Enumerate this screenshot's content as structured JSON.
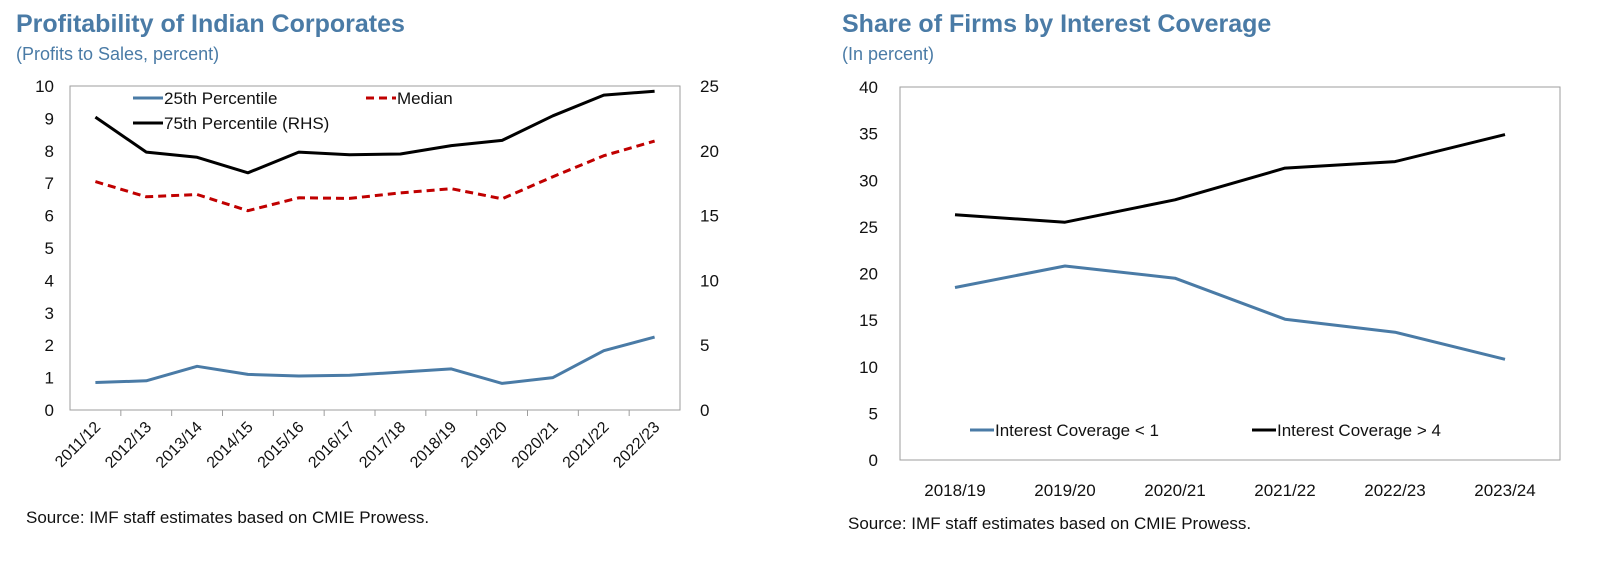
{
  "colors": {
    "accent": "#4a7ba6",
    "series_blue": "#4a7ba6",
    "series_red": "#c00000",
    "series_black": "#000000"
  },
  "left": {
    "title": "Profitability of Indian Corporates",
    "subtitle": "(Profits to Sales, percent)",
    "source": "Source: IMF staff estimates based on CMIE Prowess."
  },
  "right": {
    "title": "Share of Firms by Interest Coverage",
    "subtitle": "(In percent)",
    "source": "Source: IMF staff estimates based on CMIE Prowess."
  },
  "chart_data": [
    {
      "type": "line",
      "title": "Profitability of Indian Corporates",
      "subtitle": "(Profits to Sales, percent)",
      "categories": [
        "2011/12",
        "2012/13",
        "2013/14",
        "2014/15",
        "2015/16",
        "2016/17",
        "2017/18",
        "2018/19",
        "2019/20",
        "2020/21",
        "2021/22",
        "2022/23"
      ],
      "ylim": [
        0,
        10
      ],
      "yticks": [
        0,
        1,
        2,
        3,
        4,
        5,
        6,
        7,
        8,
        9,
        10
      ],
      "y2lim": [
        0,
        25
      ],
      "y2ticks": [
        0,
        5,
        10,
        15,
        20,
        25
      ],
      "grid": false,
      "legend_position": "top-left",
      "series": [
        {
          "name": "25th Percentile",
          "axis": "left",
          "style": "solid",
          "color": "#4a7ba6",
          "values": [
            0.85,
            0.9,
            1.35,
            1.1,
            1.05,
            1.07,
            1.17,
            1.27,
            0.82,
            1.0,
            1.83,
            2.25
          ]
        },
        {
          "name": "Median",
          "axis": "left",
          "style": "dashed",
          "color": "#c00000",
          "values": [
            7.05,
            6.58,
            6.65,
            6.15,
            6.55,
            6.53,
            6.7,
            6.83,
            6.52,
            7.2,
            7.85,
            8.3
          ]
        },
        {
          "name": "75th Percentile (RHS)",
          "axis": "right",
          "style": "solid",
          "color": "#000000",
          "values": [
            22.6,
            19.9,
            19.5,
            18.3,
            19.9,
            19.7,
            19.75,
            20.4,
            20.8,
            22.7,
            24.3,
            24.6
          ]
        }
      ]
    },
    {
      "type": "line",
      "title": "Share of Firms by Interest Coverage",
      "subtitle": "(In percent)",
      "categories": [
        "2018/19",
        "2019/20",
        "2020/21",
        "2021/22",
        "2022/23",
        "2023/24"
      ],
      "ylim": [
        0,
        40
      ],
      "yticks": [
        0,
        5,
        10,
        15,
        20,
        25,
        30,
        35,
        40
      ],
      "grid": false,
      "legend_position": "bottom",
      "series": [
        {
          "name": "Interest Coverage < 1",
          "style": "solid",
          "color": "#4a7ba6",
          "values": [
            18.5,
            20.8,
            19.5,
            15.1,
            13.7,
            10.8
          ]
        },
        {
          "name": "Interest Coverage > 4",
          "style": "solid",
          "color": "#000000",
          "values": [
            26.3,
            25.5,
            27.9,
            31.3,
            32.0,
            34.9
          ]
        }
      ]
    }
  ]
}
